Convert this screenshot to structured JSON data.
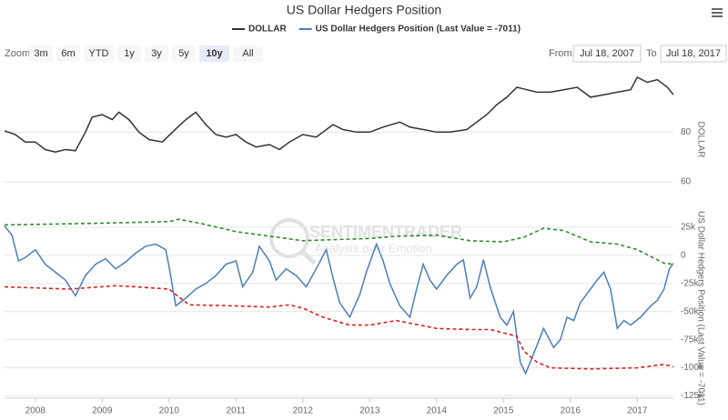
{
  "ui": {
    "zoom_label": "Zoom",
    "zoom_buttons": [
      "3m",
      "6m",
      "YTD",
      "1y",
      "3y",
      "5y",
      "10y",
      "All"
    ],
    "selected": "10y",
    "from_label": "From",
    "from_value": "Jul 18, 2007",
    "to_label": "To",
    "to_value": "Jul 18, 2017",
    "watermark_title": "SENTIMENTRADER",
    "watermark_subtitle": "Analysis over Emotion"
  },
  "chart_data": [
    {
      "type": "line",
      "title": "US Dollar Hedgers Position",
      "y_label": "DOLLAR",
      "ylim": [
        52,
        102
      ],
      "yticks": [
        60,
        80
      ],
      "grid": true,
      "series": [
        {
          "name": "DOLLAR",
          "color": "#333333",
          "x": [
            2007.54,
            2007.7,
            2007.85,
            2008.0,
            2008.15,
            2008.3,
            2008.45,
            2008.6,
            2008.75,
            2008.85,
            2009.0,
            2009.15,
            2009.25,
            2009.4,
            2009.55,
            2009.7,
            2009.9,
            2010.05,
            2010.25,
            2010.4,
            2010.55,
            2010.7,
            2010.85,
            2011.0,
            2011.15,
            2011.3,
            2011.5,
            2011.65,
            2011.8,
            2012.0,
            2012.2,
            2012.45,
            2012.6,
            2012.8,
            2013.0,
            2013.2,
            2013.45,
            2013.6,
            2013.8,
            2014.0,
            2014.2,
            2014.45,
            2014.6,
            2014.75,
            2014.9,
            2015.05,
            2015.2,
            2015.35,
            2015.5,
            2015.7,
            2015.9,
            2016.1,
            2016.3,
            2016.5,
            2016.7,
            2016.9,
            2017.0,
            2017.15,
            2017.3,
            2017.45,
            2017.54
          ],
          "values": [
            80.5,
            79,
            76,
            76,
            73,
            72,
            73,
            72.5,
            80,
            86,
            87,
            85,
            88,
            85,
            80,
            77,
            76,
            80,
            85,
            88,
            83,
            79,
            78,
            79,
            76,
            74,
            75,
            73,
            76,
            79,
            78,
            83,
            81,
            80,
            80,
            82,
            84,
            82,
            81,
            80,
            80,
            81,
            84,
            87,
            91,
            94,
            98,
            97,
            96,
            96,
            97,
            98,
            94,
            95,
            96,
            97,
            102,
            100,
            101,
            98,
            95
          ]
        }
      ]
    },
    {
      "type": "line",
      "y_label": "US Dollar Hedgers Position (Last Value = -7011)",
      "xlim": [
        2007.54,
        2017.54
      ],
      "xticks": [
        2008,
        2009,
        2010,
        2011,
        2012,
        2013,
        2014,
        2015,
        2016,
        2017
      ],
      "ylim": [
        -127000,
        33000
      ],
      "yticks": [
        {
          "value": 25000,
          "label": "25k"
        },
        0,
        {
          "value": -25000,
          "label": "-25k"
        },
        {
          "value": -50000,
          "label": "-50k"
        },
        {
          "value": -75000,
          "label": "-75k"
        },
        {
          "value": -100000,
          "label": "-100k"
        },
        {
          "value": -125000,
          "label": "-125k"
        }
      ],
      "grid": true,
      "series": [
        {
          "name": "US Dollar Hedgers Position (Last Value = -7011)",
          "color": "#4a7ebb",
          "x": [
            2007.54,
            2007.65,
            2007.75,
            2007.85,
            2008.0,
            2008.15,
            2008.3,
            2008.45,
            2008.6,
            2008.75,
            2008.9,
            2009.05,
            2009.2,
            2009.35,
            2009.5,
            2009.65,
            2009.8,
            2009.95,
            2010.0,
            2010.1,
            2010.25,
            2010.4,
            2010.55,
            2010.7,
            2010.85,
            2011.0,
            2011.1,
            2011.25,
            2011.35,
            2011.5,
            2011.6,
            2011.75,
            2011.9,
            2012.05,
            2012.2,
            2012.35,
            2012.45,
            2012.55,
            2012.7,
            2012.85,
            2012.95,
            2013.1,
            2013.2,
            2013.3,
            2013.45,
            2013.6,
            2013.7,
            2013.8,
            2013.9,
            2014.0,
            2014.15,
            2014.3,
            2014.4,
            2014.5,
            2014.6,
            2014.7,
            2014.8,
            2014.95,
            2015.05,
            2015.15,
            2015.25,
            2015.33,
            2015.42,
            2015.5,
            2015.6,
            2015.75,
            2015.85,
            2015.95,
            2016.05,
            2016.15,
            2016.3,
            2016.4,
            2016.5,
            2016.6,
            2016.7,
            2016.8,
            2016.9,
            2017.05,
            2017.2,
            2017.3,
            2017.4,
            2017.48,
            2017.54
          ],
          "values": [
            26000,
            18000,
            -5000,
            -2000,
            5000,
            -8000,
            -15000,
            -22000,
            -36000,
            -18000,
            -8000,
            -3000,
            -12000,
            -6000,
            2000,
            8000,
            10000,
            5000,
            -10000,
            -45000,
            -38000,
            -30000,
            -25000,
            -18000,
            -8000,
            -5000,
            -28000,
            -15000,
            8000,
            -5000,
            -22000,
            -12000,
            -18000,
            -28000,
            -12000,
            5000,
            -20000,
            -42000,
            -55000,
            -35000,
            -15000,
            10000,
            -5000,
            -25000,
            -45000,
            -55000,
            -30000,
            -8000,
            -22000,
            -30000,
            -18000,
            -8000,
            -4000,
            -38000,
            -28000,
            -4000,
            -28000,
            -55000,
            -62000,
            -50000,
            -95000,
            -105000,
            -92000,
            -80000,
            -65000,
            -82000,
            -75000,
            -55000,
            -58000,
            -42000,
            -30000,
            -22000,
            -15000,
            -30000,
            -65000,
            -58000,
            -62000,
            -55000,
            -45000,
            -40000,
            -30000,
            -12000,
            -7011
          ]
        },
        {
          "color": "#2e8b2e",
          "dashed": true,
          "x": [
            2007.54,
            2008.5,
            2009.3,
            2010.0,
            2010.15,
            2010.5,
            2011.0,
            2011.5,
            2012.0,
            2012.5,
            2013.0,
            2013.4,
            2014.0,
            2014.5,
            2015.0,
            2015.3,
            2015.6,
            2015.9,
            2016.3,
            2016.7,
            2017.0,
            2017.4,
            2017.54
          ],
          "values": [
            27000,
            28000,
            29000,
            30000,
            32000,
            28000,
            21000,
            17000,
            13000,
            14000,
            15000,
            17000,
            18000,
            13000,
            12000,
            16000,
            24000,
            22000,
            12000,
            10000,
            5000,
            -7000,
            -8000
          ]
        },
        {
          "color": "#d62020",
          "dashed": true,
          "x": [
            2007.54,
            2008.5,
            2009.2,
            2009.5,
            2010.0,
            2010.1,
            2010.3,
            2011.0,
            2011.5,
            2011.8,
            2012.0,
            2012.3,
            2012.7,
            2013.0,
            2013.4,
            2014.0,
            2014.5,
            2014.8,
            2015.2,
            2015.3,
            2015.5,
            2015.7,
            2016.3,
            2017.0,
            2017.4,
            2017.54
          ],
          "values": [
            -28000,
            -30000,
            -27000,
            -28000,
            -30000,
            -35000,
            -44000,
            -45000,
            -46000,
            -44000,
            -47000,
            -55000,
            -62000,
            -62000,
            -58000,
            -65000,
            -66000,
            -66000,
            -72000,
            -85000,
            -95000,
            -100000,
            -101000,
            -100000,
            -97000,
            -99000
          ]
        }
      ]
    }
  ]
}
